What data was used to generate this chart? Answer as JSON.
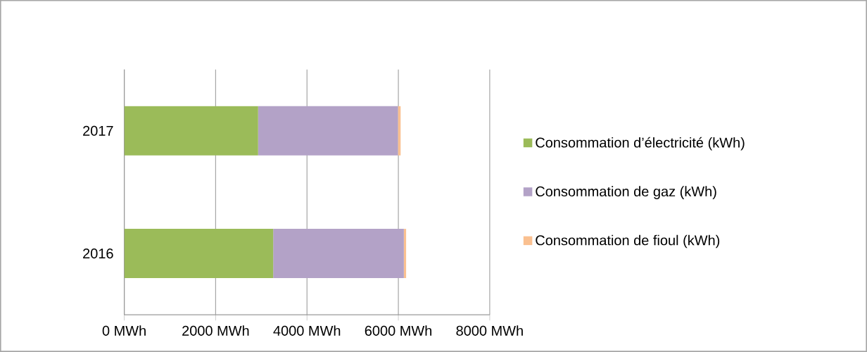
{
  "chart_data": {
    "type": "bar",
    "orientation": "horizontal",
    "stacked": true,
    "categories": [
      "2017",
      "2016"
    ],
    "series": [
      {
        "name": "Consommation d’électricité (kWh)",
        "color": "#9bbb59",
        "values": [
          2930,
          3260
        ]
      },
      {
        "name": "Consommation de gaz (kWh)",
        "color": "#b3a2c7",
        "values": [
          3060,
          2860
        ]
      },
      {
        "name": "Consommation de fioul (kWh)",
        "color": "#fac090",
        "values": [
          60,
          50
        ]
      }
    ],
    "xlim": [
      0,
      8000
    ],
    "xticks": [
      {
        "value": 0,
        "label": "0  MWh"
      },
      {
        "value": 2000,
        "label": "2000  MWh"
      },
      {
        "value": 4000,
        "label": "4000  MWh"
      },
      {
        "value": 6000,
        "label": "6000  MWh"
      },
      {
        "value": 8000,
        "label": "8000  MWh"
      }
    ],
    "grid": "x",
    "legend": "right"
  }
}
